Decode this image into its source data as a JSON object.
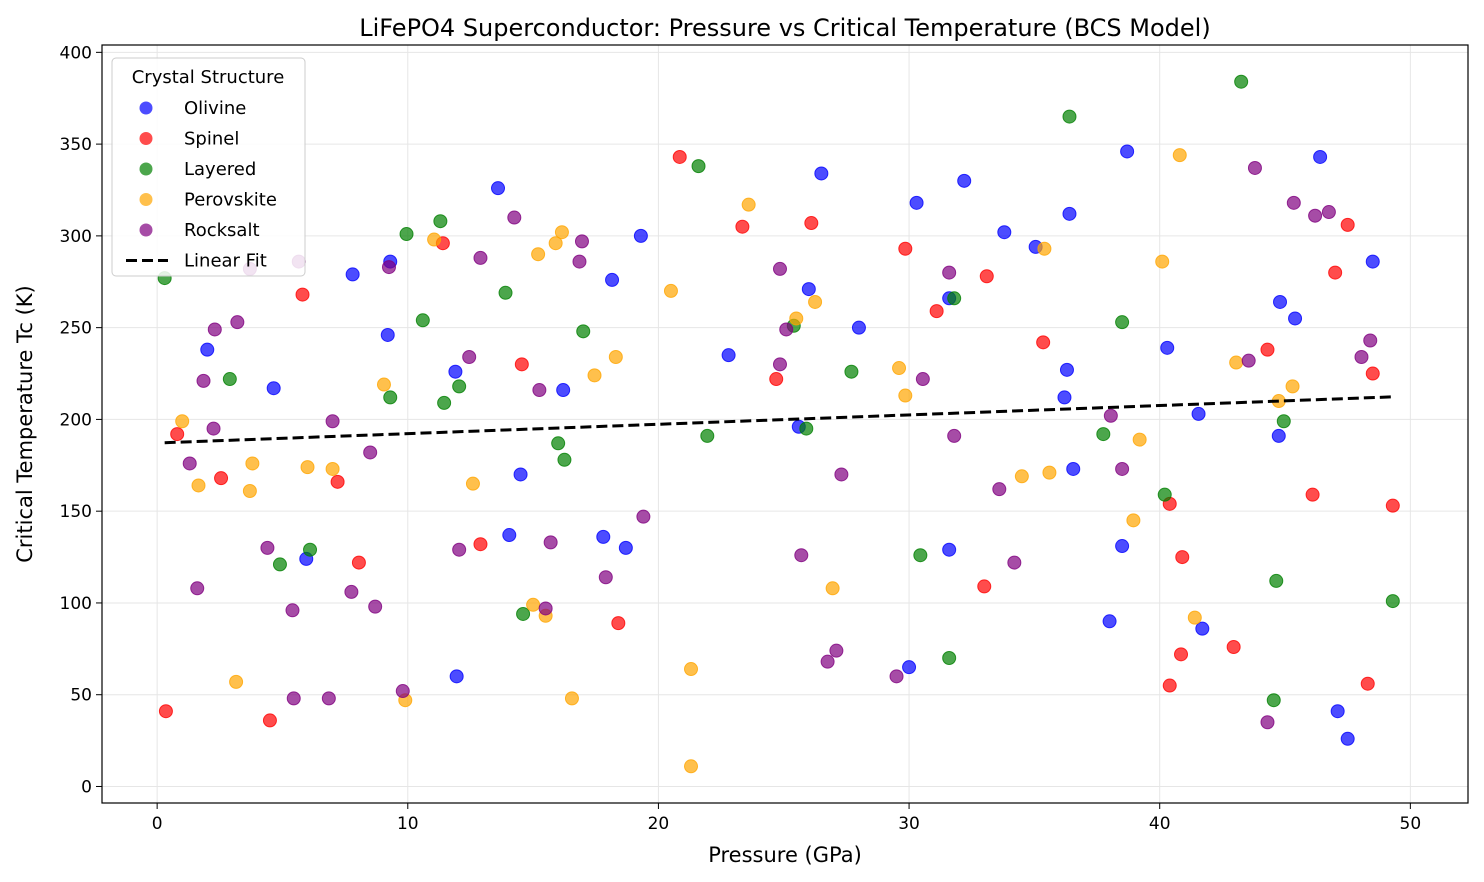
{
  "chart_data": {
    "type": "scatter",
    "title": "LiFePO4 Superconductor: Pressure vs Critical Temperature (BCS Model)",
    "xlabel": "Pressure (GPa)",
    "ylabel": "Critical Temperature Tc (K)",
    "xlim": [
      -2.2,
      52.3
    ],
    "ylim": [
      -9,
      404
    ],
    "xticks": [
      0,
      10,
      20,
      30,
      40,
      50
    ],
    "yticks": [
      0,
      50,
      100,
      150,
      200,
      250,
      300,
      350,
      400
    ],
    "grid": true,
    "legend": {
      "title": "Crystal Structure",
      "placement": "top-left"
    },
    "series": [
      {
        "name": "Olivine",
        "color": "#0000ff",
        "points": [
          [
            2.0,
            238
          ],
          [
            4.65,
            217
          ],
          [
            5.95,
            124
          ],
          [
            7.8,
            279
          ],
          [
            9.2,
            246
          ],
          [
            9.3,
            286
          ],
          [
            11.9,
            226
          ],
          [
            11.95,
            60
          ],
          [
            13.6,
            326
          ],
          [
            14.05,
            137
          ],
          [
            14.5,
            170
          ],
          [
            16.2,
            216
          ],
          [
            17.8,
            136
          ],
          [
            18.15,
            276
          ],
          [
            18.7,
            130
          ],
          [
            19.3,
            300
          ],
          [
            22.8,
            235
          ],
          [
            25.6,
            196
          ],
          [
            26.0,
            271
          ],
          [
            26.5,
            334
          ],
          [
            28.0,
            250
          ],
          [
            30.0,
            65
          ],
          [
            30.3,
            318
          ],
          [
            31.6,
            129
          ],
          [
            31.6,
            266
          ],
          [
            32.2,
            330
          ],
          [
            33.8,
            302
          ],
          [
            35.05,
            294
          ],
          [
            36.2,
            212
          ],
          [
            36.3,
            227
          ],
          [
            36.4,
            312
          ],
          [
            36.55,
            173
          ],
          [
            38.0,
            90
          ],
          [
            38.5,
            131
          ],
          [
            38.7,
            346
          ],
          [
            40.3,
            239
          ],
          [
            41.55,
            203
          ],
          [
            41.7,
            86
          ],
          [
            44.75,
            191
          ],
          [
            44.8,
            264
          ],
          [
            46.4,
            343
          ],
          [
            45.4,
            255
          ],
          [
            47.1,
            41
          ],
          [
            47.5,
            26
          ],
          [
            48.5,
            286
          ]
        ]
      },
      {
        "name": "Spinel",
        "color": "#ff0000",
        "points": [
          [
            0.35,
            41
          ],
          [
            0.8,
            192
          ],
          [
            2.55,
            168
          ],
          [
            4.5,
            36
          ],
          [
            5.8,
            268
          ],
          [
            7.2,
            166
          ],
          [
            8.05,
            122
          ],
          [
            11.4,
            296
          ],
          [
            12.9,
            132
          ],
          [
            14.55,
            230
          ],
          [
            18.4,
            89
          ],
          [
            20.85,
            343
          ],
          [
            23.35,
            305
          ],
          [
            24.7,
            222
          ],
          [
            26.1,
            307
          ],
          [
            29.85,
            293
          ],
          [
            31.1,
            259
          ],
          [
            33.1,
            278
          ],
          [
            33.0,
            109
          ],
          [
            35.35,
            242
          ],
          [
            40.4,
            154
          ],
          [
            40.4,
            55
          ],
          [
            40.9,
            125
          ],
          [
            40.85,
            72
          ],
          [
            42.95,
            76
          ],
          [
            44.3,
            238
          ],
          [
            46.1,
            159
          ],
          [
            47.0,
            280
          ],
          [
            47.5,
            306
          ],
          [
            48.3,
            56
          ],
          [
            48.5,
            225
          ],
          [
            49.3,
            153
          ]
        ]
      },
      {
        "name": "Layered",
        "color": "#008000",
        "points": [
          [
            0.3,
            277
          ],
          [
            2.9,
            222
          ],
          [
            4.9,
            121
          ],
          [
            6.1,
            129
          ],
          [
            9.3,
            212
          ],
          [
            9.95,
            301
          ],
          [
            10.6,
            254
          ],
          [
            11.3,
            308
          ],
          [
            11.45,
            209
          ],
          [
            12.05,
            218
          ],
          [
            13.9,
            269
          ],
          [
            14.6,
            94
          ],
          [
            16.0,
            187
          ],
          [
            16.25,
            178
          ],
          [
            17.0,
            248
          ],
          [
            21.6,
            338
          ],
          [
            21.95,
            191
          ],
          [
            25.4,
            251
          ],
          [
            25.9,
            195
          ],
          [
            27.7,
            226
          ],
          [
            30.45,
            126
          ],
          [
            31.6,
            70
          ],
          [
            31.8,
            266
          ],
          [
            36.4,
            365
          ],
          [
            37.75,
            192
          ],
          [
            38.5,
            253
          ],
          [
            40.2,
            159
          ],
          [
            43.25,
            384
          ],
          [
            44.55,
            47
          ],
          [
            44.65,
            112
          ],
          [
            44.95,
            199
          ],
          [
            49.3,
            101
          ]
        ]
      },
      {
        "name": "Perovskite",
        "color": "#ffa500",
        "points": [
          [
            1.0,
            199
          ],
          [
            1.65,
            164
          ],
          [
            3.15,
            57
          ],
          [
            3.7,
            161
          ],
          [
            3.8,
            176
          ],
          [
            6.0,
            174
          ],
          [
            7.0,
            173
          ],
          [
            9.05,
            219
          ],
          [
            9.9,
            47
          ],
          [
            11.05,
            298
          ],
          [
            12.6,
            165
          ],
          [
            15.0,
            99
          ],
          [
            15.2,
            290
          ],
          [
            15.5,
            93
          ],
          [
            15.9,
            296
          ],
          [
            16.15,
            302
          ],
          [
            16.55,
            48
          ],
          [
            17.45,
            224
          ],
          [
            18.3,
            234
          ],
          [
            20.5,
            270
          ],
          [
            21.3,
            64
          ],
          [
            21.3,
            11
          ],
          [
            23.6,
            317
          ],
          [
            25.5,
            255
          ],
          [
            26.25,
            264
          ],
          [
            26.95,
            108
          ],
          [
            29.6,
            228
          ],
          [
            29.85,
            213
          ],
          [
            35.4,
            293
          ],
          [
            34.5,
            169
          ],
          [
            35.6,
            171
          ],
          [
            38.95,
            145
          ],
          [
            39.2,
            189
          ],
          [
            40.1,
            286
          ],
          [
            40.8,
            344
          ],
          [
            41.4,
            92
          ],
          [
            43.05,
            231
          ],
          [
            44.75,
            210
          ],
          [
            45.3,
            218
          ]
        ]
      },
      {
        "name": "Rocksalt",
        "color": "#800080",
        "points": [
          [
            1.3,
            176
          ],
          [
            1.6,
            108
          ],
          [
            1.85,
            221
          ],
          [
            2.3,
            249
          ],
          [
            2.25,
            195
          ],
          [
            3.2,
            253
          ],
          [
            3.7,
            282
          ],
          [
            4.4,
            130
          ],
          [
            5.45,
            48
          ],
          [
            5.4,
            96
          ],
          [
            5.65,
            286
          ],
          [
            6.85,
            48
          ],
          [
            7.0,
            199
          ],
          [
            7.75,
            106
          ],
          [
            8.5,
            182
          ],
          [
            8.7,
            98
          ],
          [
            9.25,
            283
          ],
          [
            9.8,
            52
          ],
          [
            12.05,
            129
          ],
          [
            12.45,
            234
          ],
          [
            12.9,
            288
          ],
          [
            14.25,
            310
          ],
          [
            15.25,
            216
          ],
          [
            15.5,
            97
          ],
          [
            15.7,
            133
          ],
          [
            16.85,
            286
          ],
          [
            16.95,
            297
          ],
          [
            17.9,
            114
          ],
          [
            19.4,
            147
          ],
          [
            24.85,
            230
          ],
          [
            24.85,
            282
          ],
          [
            25.1,
            249
          ],
          [
            25.7,
            126
          ],
          [
            26.75,
            68
          ],
          [
            27.1,
            74
          ],
          [
            27.3,
            170
          ],
          [
            29.5,
            60
          ],
          [
            30.55,
            222
          ],
          [
            31.6,
            280
          ],
          [
            31.8,
            191
          ],
          [
            33.6,
            162
          ],
          [
            34.2,
            122
          ],
          [
            38.05,
            202
          ],
          [
            38.5,
            173
          ],
          [
            43.55,
            232
          ],
          [
            43.8,
            337
          ],
          [
            44.3,
            35
          ],
          [
            45.35,
            318
          ],
          [
            46.2,
            311
          ],
          [
            46.75,
            313
          ],
          [
            48.05,
            234
          ],
          [
            48.4,
            243
          ]
        ]
      }
    ],
    "fit": {
      "name": "Linear Fit",
      "color": "#000000",
      "style": "dashed",
      "x": [
        0.3,
        49.3
      ],
      "y": [
        187.3,
        212.3
      ]
    }
  }
}
